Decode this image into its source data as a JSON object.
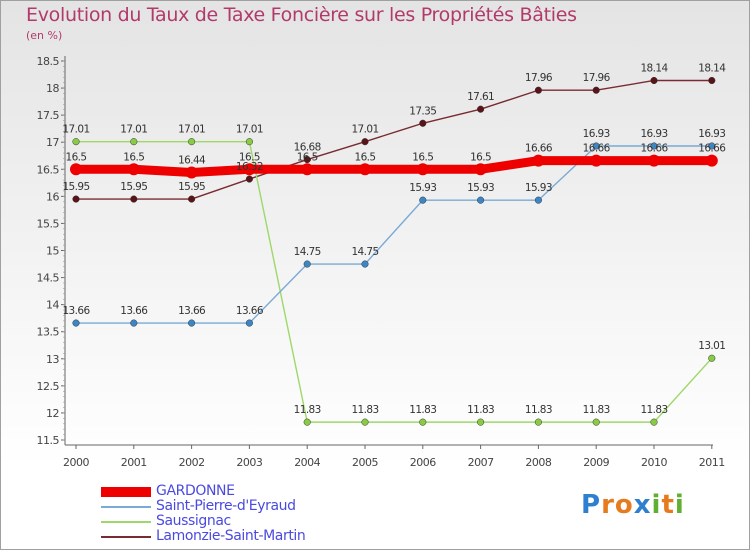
{
  "header": {
    "title": "Evolution du Taux de Taxe Foncière sur les Propriétés Bâties",
    "unit": "(en %)"
  },
  "logo": {
    "letters": [
      {
        "ch": "P",
        "color": "#2f7fd0"
      },
      {
        "ch": "r",
        "color": "#e87a1e"
      },
      {
        "ch": "o",
        "color": "#e87a1e"
      },
      {
        "ch": "x",
        "color": "#2f7fd0"
      },
      {
        "ch": "i",
        "color": "#5fb030"
      },
      {
        "ch": "t",
        "color": "#e87a1e"
      },
      {
        "ch": "i",
        "color": "#5fb030"
      }
    ]
  },
  "chart_data": {
    "type": "line",
    "title": "Evolution du Taux de Taxe Foncière sur les Propriétés Bâties",
    "ylabel": "(en %)",
    "xlabel": "",
    "categories": [
      "2000",
      "2001",
      "2002",
      "2003",
      "2004",
      "2005",
      "2006",
      "2007",
      "2008",
      "2009",
      "2010",
      "2011"
    ],
    "ylim": [
      11.5,
      18.5
    ],
    "yticks": [
      "11.5",
      "12",
      "12.5",
      "13",
      "13.5",
      "14",
      "14.5",
      "15",
      "15.5",
      "16",
      "16.5",
      "17",
      "17.5",
      "18",
      "18.5"
    ],
    "grid": false,
    "legend": "bottom-left",
    "series": [
      {
        "name": "Lamonzie-Saint-Martin",
        "color": "#7a2a32",
        "marker": "#5a1418",
        "values": [
          15.95,
          15.95,
          15.95,
          16.32,
          16.68,
          17.01,
          17.35,
          17.61,
          17.96,
          17.96,
          18.14,
          18.14
        ],
        "labels": [
          "15.95",
          "15.95",
          "15.95",
          "16.32",
          "16.68",
          "17.01",
          "17.35",
          "17.61",
          "17.96",
          "17.96",
          "18.14",
          "18.14"
        ]
      },
      {
        "name": "Saussignac",
        "color": "#9ed86a",
        "marker": "#88cc44",
        "values": [
          17.01,
          17.01,
          17.01,
          17.01,
          11.83,
          11.83,
          11.83,
          11.83,
          11.83,
          11.83,
          11.83,
          13.01
        ],
        "labels": [
          "17.01",
          "17.01",
          "17.01",
          "17.01",
          "11.83",
          "11.83",
          "11.83",
          "11.83",
          "11.83",
          "11.83",
          "11.83",
          "13.01"
        ]
      },
      {
        "name": "Saint-Pierre-d'Eyraud",
        "color": "#7aaad6",
        "marker": "#3d86c6",
        "values": [
          13.66,
          13.66,
          13.66,
          13.66,
          14.75,
          14.75,
          15.93,
          15.93,
          15.93,
          16.93,
          16.93,
          16.93
        ],
        "labels": [
          "13.66",
          "13.66",
          "13.66",
          "13.66",
          "14.75",
          "14.75",
          "15.93",
          "15.93",
          "15.93",
          "16.93",
          "16.93",
          "16.93"
        ]
      },
      {
        "name": "GARDONNE",
        "color": "#ee0000",
        "marker": "#ee0000",
        "values": [
          16.5,
          16.5,
          16.44,
          16.5,
          16.5,
          16.5,
          16.5,
          16.5,
          16.66,
          16.66,
          16.66,
          16.66
        ],
        "labels": [
          "16.5",
          "16.5",
          "16.44",
          "16.5",
          "16.5",
          "16.5",
          "16.5",
          "16.5",
          "16.66",
          "16.66",
          "16.66",
          "16.66"
        ]
      }
    ],
    "legend_entries": [
      "GARDONNE",
      "Saint-Pierre-d'Eyraud",
      "Saussignac",
      "Lamonzie-Saint-Martin"
    ]
  }
}
